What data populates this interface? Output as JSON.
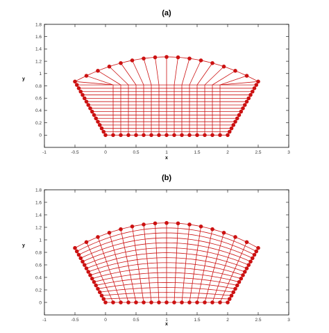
{
  "chart_data": [
    {
      "type": "scatter",
      "title": "(a)",
      "xlabel": "x",
      "ylabel": "y",
      "xlim": [
        -1,
        3
      ],
      "ylim": [
        -0.2,
        1.8
      ],
      "xticks": [
        -1,
        -0.5,
        0,
        0.5,
        1,
        1.5,
        2,
        2.5,
        3
      ],
      "xtick_labels": [
        "-1",
        "-0.5",
        "0",
        "0.5",
        "1",
        "1.5",
        "2",
        "2.5",
        "3"
      ],
      "yticks": [
        0,
        0.2,
        0.4,
        0.6,
        0.8,
        1,
        1.2,
        1.4,
        1.6,
        1.8
      ],
      "ytick_labels": [
        "0",
        "0.2",
        "0.4",
        "0.6",
        "0.8",
        "1",
        "1.2",
        "1.4",
        "1.6",
        "1.8"
      ],
      "grid": false,
      "mesh": "algebraic",
      "color": "#cc1111",
      "boundary": {
        "bottom": {
          "from": [
            0,
            0
          ],
          "to": [
            2,
            0
          ],
          "points": 17
        },
        "left": {
          "from": [
            0,
            0
          ],
          "to": [
            -0.5,
            0.87
          ],
          "points": 17
        },
        "right": {
          "from": [
            2,
            0
          ],
          "to": [
            2.5,
            0.87
          ],
          "points": 17
        },
        "top": {
          "from": [
            -0.5,
            0.87
          ],
          "to": [
            2.5,
            0.87
          ],
          "peak_y": 1.27,
          "points": 17
        }
      },
      "interior_box": {
        "x": [
          0.13,
          1.87
        ]
      }
    },
    {
      "type": "scatter",
      "title": "(b)",
      "xlabel": "x",
      "ylabel": "y",
      "xlim": [
        -1,
        3
      ],
      "ylim": [
        -0.2,
        1.8
      ],
      "xticks": [
        -1,
        -0.5,
        0,
        0.5,
        1,
        1.5,
        2,
        2.5,
        3
      ],
      "xtick_labels": [
        "-1",
        "-0.5",
        "0",
        "0.5",
        "1",
        "1.5",
        "2",
        "2.5",
        "3"
      ],
      "yticks": [
        0,
        0.2,
        0.4,
        0.6,
        0.8,
        1,
        1.2,
        1.4,
        1.6,
        1.8
      ],
      "ytick_labels": [
        "0",
        "0.2",
        "0.4",
        "0.6",
        "0.8",
        "1",
        "1.2",
        "1.4",
        "1.6",
        "1.8"
      ],
      "grid": false,
      "mesh": "smoothed",
      "color": "#cc1111",
      "boundary": {
        "bottom": {
          "from": [
            0,
            0
          ],
          "to": [
            2,
            0
          ],
          "points": 17
        },
        "left": {
          "from": [
            0,
            0
          ],
          "to": [
            -0.5,
            0.87
          ],
          "points": 17
        },
        "right": {
          "from": [
            2,
            0
          ],
          "to": [
            2.5,
            0.87
          ],
          "points": 17
        },
        "top": {
          "from": [
            -0.5,
            0.87
          ],
          "to": [
            2.5,
            0.87
          ],
          "peak_y": 1.27,
          "points": 17
        }
      }
    }
  ]
}
